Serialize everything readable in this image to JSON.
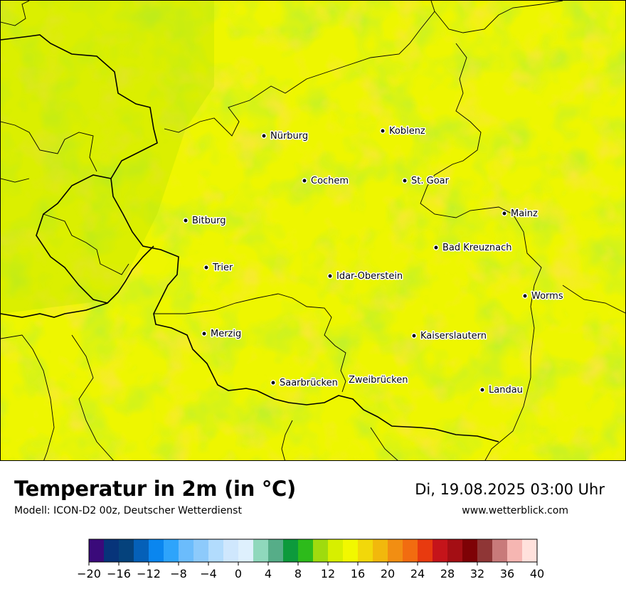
{
  "map": {
    "cities": [
      {
        "name": "Nürburg"
      },
      {
        "name": "Koblenz"
      },
      {
        "name": "Cochem"
      },
      {
        "name": "St. Goar"
      },
      {
        "name": "Mainz"
      },
      {
        "name": "Bitburg"
      },
      {
        "name": "Bad Kreuznach"
      },
      {
        "name": "Trier"
      },
      {
        "name": "Idar-Oberstein"
      },
      {
        "name": "Worms"
      },
      {
        "name": "Merzig"
      },
      {
        "name": "Kaiserslautern"
      },
      {
        "name": "Saarbrücken"
      },
      {
        "name": "Zweibrücken"
      },
      {
        "name": "Landau"
      }
    ],
    "dominant_temperature_range_celsius": [
      12,
      20
    ]
  },
  "title": "Temperatur in 2m (in °C)",
  "model": "Modell: ICON-D2 00z, Deutscher Wetterdienst",
  "datetime": "Di, 19.08.2025 03:00 Uhr",
  "website": "www.wetterblick.com",
  "legend": {
    "colors": [
      "#3a0a7a",
      "#07347a",
      "#05427c",
      "#0560b8",
      "#0a86ef",
      "#2ea4fb",
      "#6bbcfc",
      "#8dcafb",
      "#b2dcfd",
      "#cfe7fd",
      "#def0fd",
      "#8fd8bc",
      "#56ad88",
      "#0d9a3c",
      "#2dbb1b",
      "#9fdb0e",
      "#d7ef00",
      "#f2f800",
      "#f2d80a",
      "#f2b80c",
      "#f28e12",
      "#f26c10",
      "#e83a0f",
      "#c5141a",
      "#a40e14",
      "#7e0206",
      "#8f3636",
      "#c87a7a",
      "#f6b6b2",
      "#ffe1dc"
    ],
    "tick_labels": [
      "−20",
      "−16",
      "−12",
      "−8",
      "−4",
      "0",
      "4",
      "8",
      "12",
      "16",
      "20",
      "24",
      "28",
      "32",
      "36",
      "40"
    ]
  }
}
